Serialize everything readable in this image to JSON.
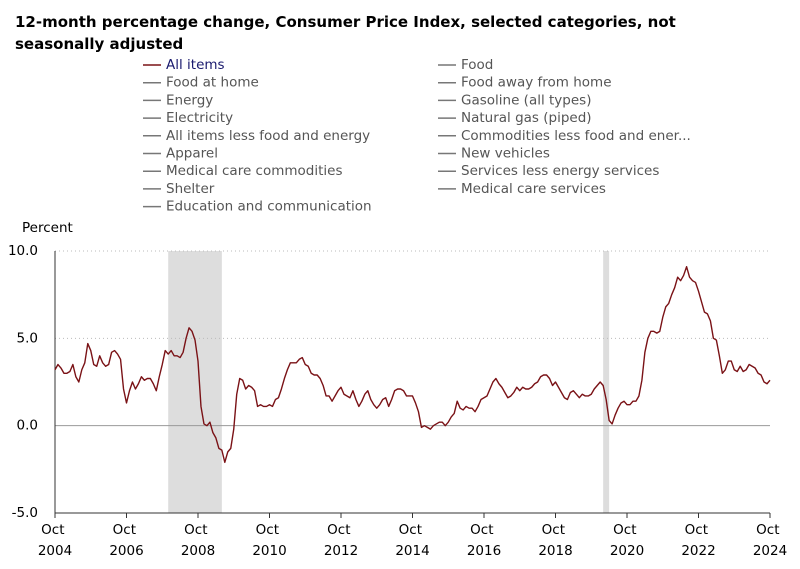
{
  "chart_data": {
    "type": "line",
    "title": "12-month percentage change, Consumer Price Index, selected categories, not seasonally adjusted",
    "y_axis_label": "Percent",
    "categories": [
      "Oct 2004",
      null,
      null,
      null,
      null,
      null,
      null,
      null,
      null,
      null,
      null,
      null,
      null,
      null,
      null,
      null,
      null,
      null,
      null,
      null,
      null,
      null,
      null,
      null,
      "Oct 2006",
      null,
      null,
      null,
      null,
      null,
      null,
      null,
      null,
      null,
      null,
      null,
      null,
      null,
      null,
      null,
      null,
      null,
      null,
      null,
      null,
      null,
      null,
      null,
      "Oct 2008",
      null,
      null,
      null,
      null,
      null,
      null,
      null,
      null,
      null,
      null,
      null,
      null,
      null,
      null,
      null,
      null,
      null,
      null,
      null,
      null,
      null,
      null,
      null,
      "Oct 2010",
      null,
      null,
      null,
      null,
      null,
      null,
      null,
      null,
      null,
      null,
      null,
      null,
      null,
      null,
      null,
      null,
      null,
      null,
      null,
      null,
      null,
      null,
      null,
      "Oct 2012",
      null,
      null,
      null,
      null,
      null,
      null,
      null,
      null,
      null,
      null,
      null,
      null,
      null,
      null,
      null,
      null,
      null,
      null,
      null,
      null,
      null,
      null,
      null,
      "Oct 2014",
      null,
      null,
      null,
      null,
      null,
      null,
      null,
      null,
      null,
      null,
      null,
      null,
      null,
      null,
      null,
      null,
      null,
      null,
      null,
      null,
      null,
      null,
      null,
      "Oct 2016",
      null,
      null,
      null,
      null,
      null,
      null,
      null,
      null,
      null,
      null,
      null,
      null,
      null,
      null,
      null,
      null,
      null,
      null,
      null,
      null,
      null,
      null,
      null,
      "Oct 2018",
      null,
      null,
      null,
      null,
      null,
      null,
      null,
      null,
      null,
      null,
      null,
      null,
      null,
      null,
      null,
      null,
      null,
      null,
      null,
      null,
      null,
      null,
      null,
      "Oct 2020",
      null,
      null,
      null,
      null,
      null,
      null,
      null,
      null,
      null,
      null,
      null,
      null,
      null,
      null,
      null,
      null,
      null,
      null,
      null,
      null,
      null,
      null,
      null,
      "Oct 2022",
      null,
      null,
      null,
      null,
      null,
      null,
      null,
      null,
      null,
      null,
      null,
      null,
      null,
      null,
      null,
      null,
      null,
      null,
      null,
      null,
      null,
      null,
      null,
      "Oct 2024"
    ],
    "series": [
      {
        "name": "All items",
        "color": "#7a1216",
        "values": [
          3.2,
          3.5,
          3.3,
          3.0,
          3.0,
          3.1,
          3.5,
          2.8,
          2.5,
          3.2,
          3.6,
          4.7,
          4.3,
          3.5,
          3.4,
          4.0,
          3.6,
          3.4,
          3.5,
          4.2,
          4.3,
          4.1,
          3.8,
          2.1,
          1.3,
          2.0,
          2.5,
          2.1,
          2.4,
          2.8,
          2.6,
          2.7,
          2.7,
          2.4,
          2.0,
          2.8,
          3.5,
          4.3,
          4.1,
          4.3,
          4.0,
          4.0,
          3.9,
          4.2,
          5.0,
          5.6,
          5.4,
          4.9,
          3.7,
          1.1,
          0.1,
          0.0,
          0.2,
          -0.4,
          -0.7,
          -1.3,
          -1.4,
          -2.1,
          -1.5,
          -1.3,
          -0.2,
          1.8,
          2.7,
          2.6,
          2.1,
          2.3,
          2.2,
          2.0,
          1.1,
          1.2,
          1.1,
          1.1,
          1.2,
          1.1,
          1.5,
          1.6,
          2.1,
          2.7,
          3.2,
          3.6,
          3.6,
          3.6,
          3.8,
          3.9,
          3.5,
          3.4,
          3.0,
          2.9,
          2.9,
          2.7,
          2.3,
          1.7,
          1.7,
          1.4,
          1.7,
          2.0,
          2.2,
          1.8,
          1.7,
          1.6,
          2.0,
          1.5,
          1.1,
          1.4,
          1.8,
          2.0,
          1.5,
          1.2,
          1.0,
          1.2,
          1.5,
          1.6,
          1.1,
          1.5,
          2.0,
          2.1,
          2.1,
          2.0,
          1.7,
          1.7,
          1.7,
          1.3,
          0.8,
          -0.1,
          0.0,
          -0.1,
          -0.2,
          0.0,
          0.1,
          0.2,
          0.2,
          0.0,
          0.2,
          0.5,
          0.7,
          1.4,
          1.0,
          0.9,
          1.1,
          1.0,
          1.0,
          0.8,
          1.1,
          1.5,
          1.6,
          1.7,
          2.1,
          2.5,
          2.7,
          2.4,
          2.2,
          1.9,
          1.6,
          1.7,
          1.9,
          2.2,
          2.0,
          2.2,
          2.1,
          2.1,
          2.2,
          2.4,
          2.5,
          2.8,
          2.9,
          2.9,
          2.7,
          2.3,
          2.5,
          2.2,
          1.9,
          1.6,
          1.5,
          1.9,
          2.0,
          1.8,
          1.6,
          1.8,
          1.7,
          1.7,
          1.8,
          2.1,
          2.3,
          2.5,
          2.3,
          1.5,
          0.3,
          0.1,
          0.6,
          1.0,
          1.3,
          1.4,
          1.2,
          1.2,
          1.4,
          1.4,
          1.7,
          2.6,
          4.2,
          5.0,
          5.4,
          5.4,
          5.3,
          5.4,
          6.2,
          6.8,
          7.0,
          7.5,
          7.9,
          8.5,
          8.3,
          8.6,
          9.1,
          8.5,
          8.3,
          8.2,
          7.7,
          7.1,
          6.5,
          6.4,
          6.0,
          5.0,
          4.9,
          4.0,
          3.0,
          3.2,
          3.7,
          3.7,
          3.2,
          3.1,
          3.4,
          3.1,
          3.2,
          3.5,
          3.4,
          3.3,
          3.0,
          2.9,
          2.5,
          2.4,
          2.6
        ]
      }
    ],
    "other_series": [
      {
        "name": "Food",
        "color": "#777777"
      },
      {
        "name": "Food at home",
        "color": "#777777"
      },
      {
        "name": "Food away from home",
        "color": "#777777"
      },
      {
        "name": "Energy",
        "color": "#777777"
      },
      {
        "name": "Gasoline (all types)",
        "color": "#777777"
      },
      {
        "name": "Electricity",
        "color": "#777777"
      },
      {
        "name": "Natural gas (piped)",
        "color": "#777777"
      },
      {
        "name": "All items less food and energy",
        "color": "#777777"
      },
      {
        "name": "Commodities less food and ener...",
        "color": "#777777"
      },
      {
        "name": "Apparel",
        "color": "#777777"
      },
      {
        "name": "New vehicles",
        "color": "#777777"
      },
      {
        "name": "Medical care commodities",
        "color": "#777777"
      },
      {
        "name": "Services less energy services",
        "color": "#777777"
      },
      {
        "name": "Shelter",
        "color": "#777777"
      },
      {
        "name": "Medical care services",
        "color": "#777777"
      },
      {
        "name": "Education and communication",
        "color": "#777777"
      }
    ],
    "shaded_periods": [
      [
        38,
        56
      ],
      [
        184,
        186
      ]
    ],
    "shade_color": "#dddddd",
    "ylim": [
      -5,
      10
    ],
    "yticks": [
      {
        "value": -5,
        "label": "-5.0"
      },
      {
        "value": 0,
        "label": "0.0"
      },
      {
        "value": 5,
        "label": "5.0"
      },
      {
        "value": 10,
        "label": "10.0"
      }
    ],
    "grid": true
  }
}
